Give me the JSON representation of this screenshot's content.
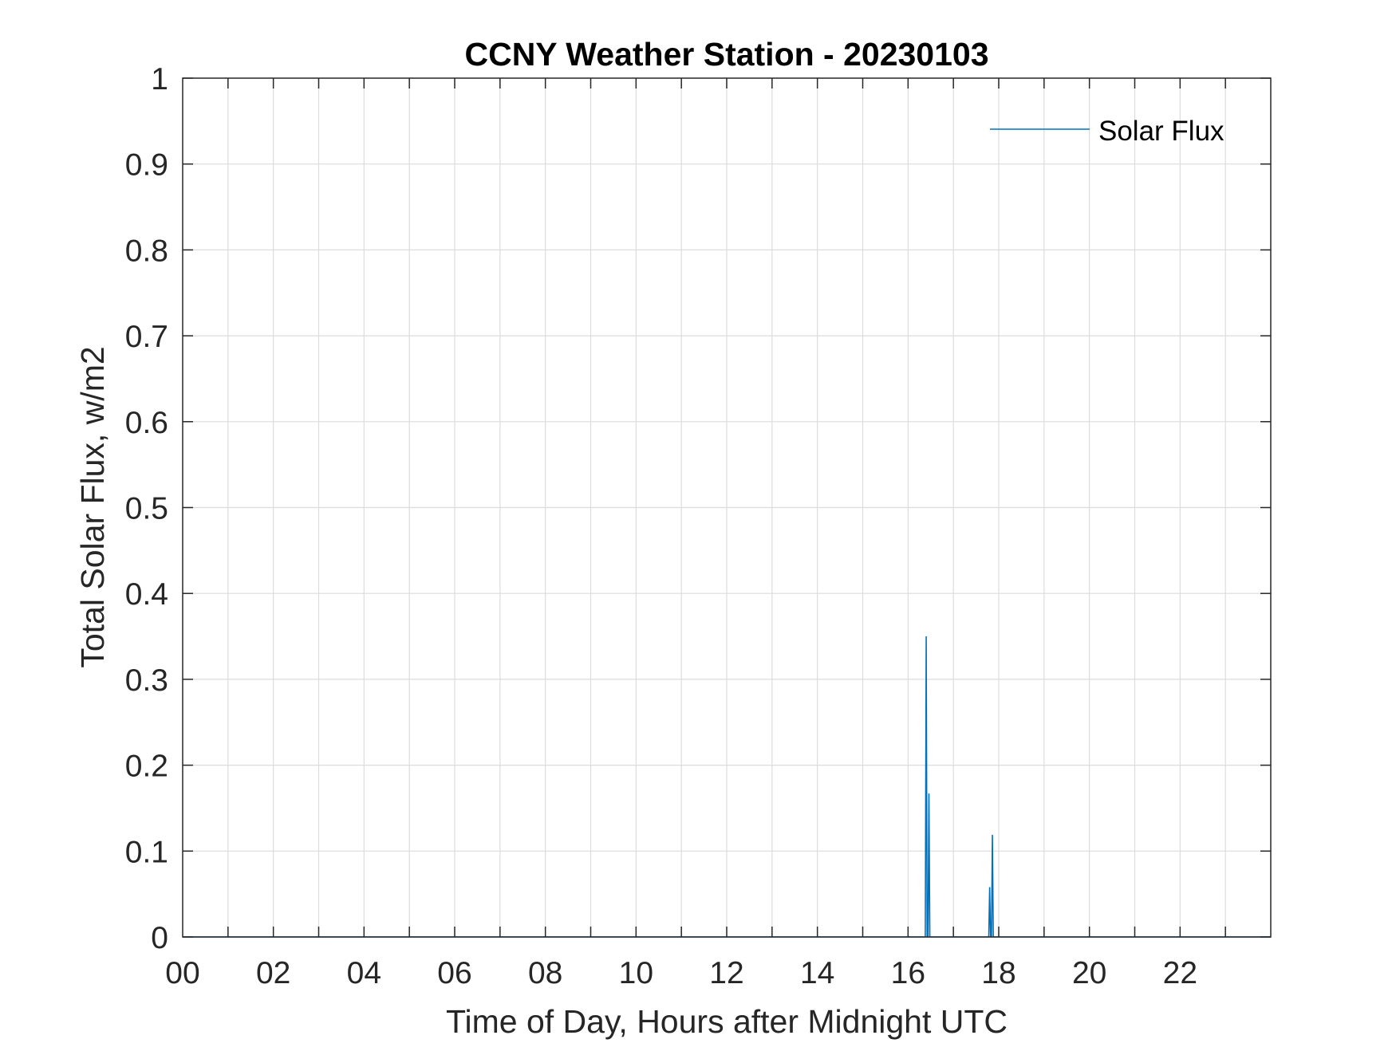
{
  "chart_data": {
    "type": "line",
    "title": "CCNY Weather Station - 20230103",
    "xlabel": "Time of Day, Hours after Midnight UTC",
    "ylabel": "Total Solar Flux, w/m2",
    "xlim": [
      0,
      24
    ],
    "ylim": [
      0,
      1
    ],
    "x_ticks": [
      0,
      2,
      4,
      6,
      8,
      10,
      12,
      14,
      16,
      18,
      20,
      22
    ],
    "x_tick_labels": [
      "00",
      "02",
      "04",
      "06",
      "08",
      "10",
      "12",
      "14",
      "16",
      "18",
      "20",
      "22"
    ],
    "x_minor_grid_step": 1,
    "y_ticks": [
      0,
      0.1,
      0.2,
      0.3,
      0.4,
      0.5,
      0.6,
      0.7,
      0.8,
      0.9,
      1
    ],
    "y_tick_labels": [
      "0",
      "0.1",
      "0.2",
      "0.3",
      "0.4",
      "0.5",
      "0.6",
      "0.7",
      "0.8",
      "0.9",
      "1"
    ],
    "grid": true,
    "legend_position": "top-right",
    "series": [
      {
        "name": "Solar Flux",
        "color": "#0072BD",
        "x": [
          0,
          16.38,
          16.4,
          16.42,
          16.44,
          16.46,
          16.48,
          16.5,
          16.52,
          17.78,
          17.8,
          17.82,
          17.84,
          17.86,
          17.88,
          17.9,
          24
        ],
        "values": [
          0,
          0,
          0.35,
          0,
          0,
          0.167,
          0,
          0,
          0,
          0,
          0.058,
          0,
          0,
          0.119,
          0,
          0,
          0
        ]
      }
    ]
  }
}
